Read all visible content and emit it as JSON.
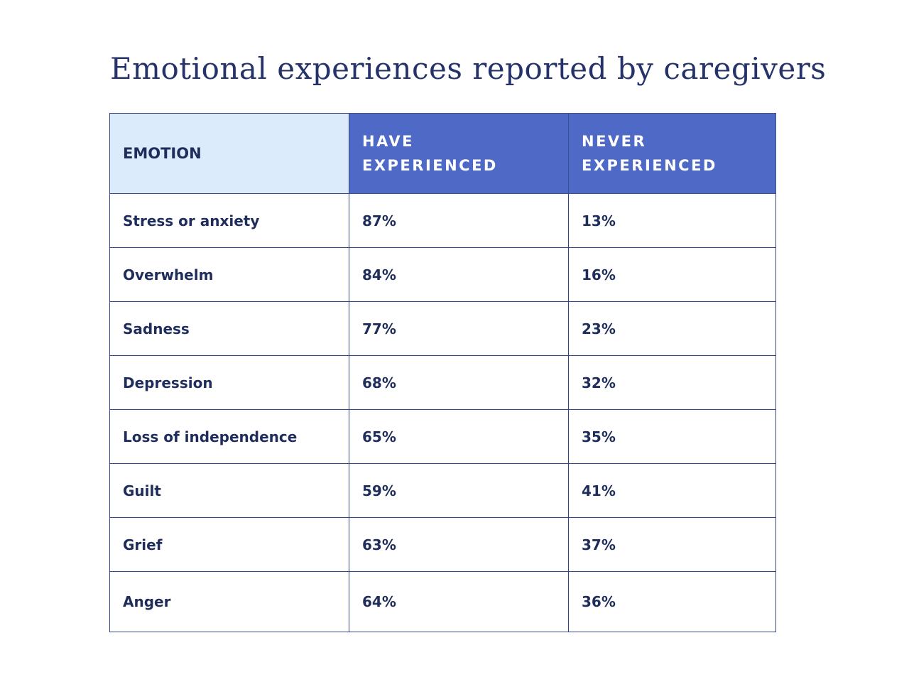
{
  "title": "Emotional experiences reported by caregivers",
  "chart_data": {
    "type": "table",
    "title": "Emotional experiences reported by caregivers",
    "columns": [
      "EMOTION",
      "HAVE EXPERIENCED",
      "NEVER EXPERIENCED"
    ],
    "rows": [
      [
        "Stress or anxiety",
        "87%",
        "13%"
      ],
      [
        "Overwhelm",
        "84%",
        "16%"
      ],
      [
        "Sadness",
        "77%",
        "23%"
      ],
      [
        "Depression",
        "68%",
        "32%"
      ],
      [
        "Loss of independence",
        "65%",
        "35%"
      ],
      [
        "Guilt",
        "59%",
        "41%"
      ],
      [
        "Grief",
        "63%",
        "37%"
      ],
      [
        "Anger",
        "64%",
        "36%"
      ]
    ]
  },
  "colors": {
    "header_light": "#dcebfc",
    "header_dark": "#4f69c6",
    "text": "#1f2d5c",
    "border": "#34458a"
  }
}
